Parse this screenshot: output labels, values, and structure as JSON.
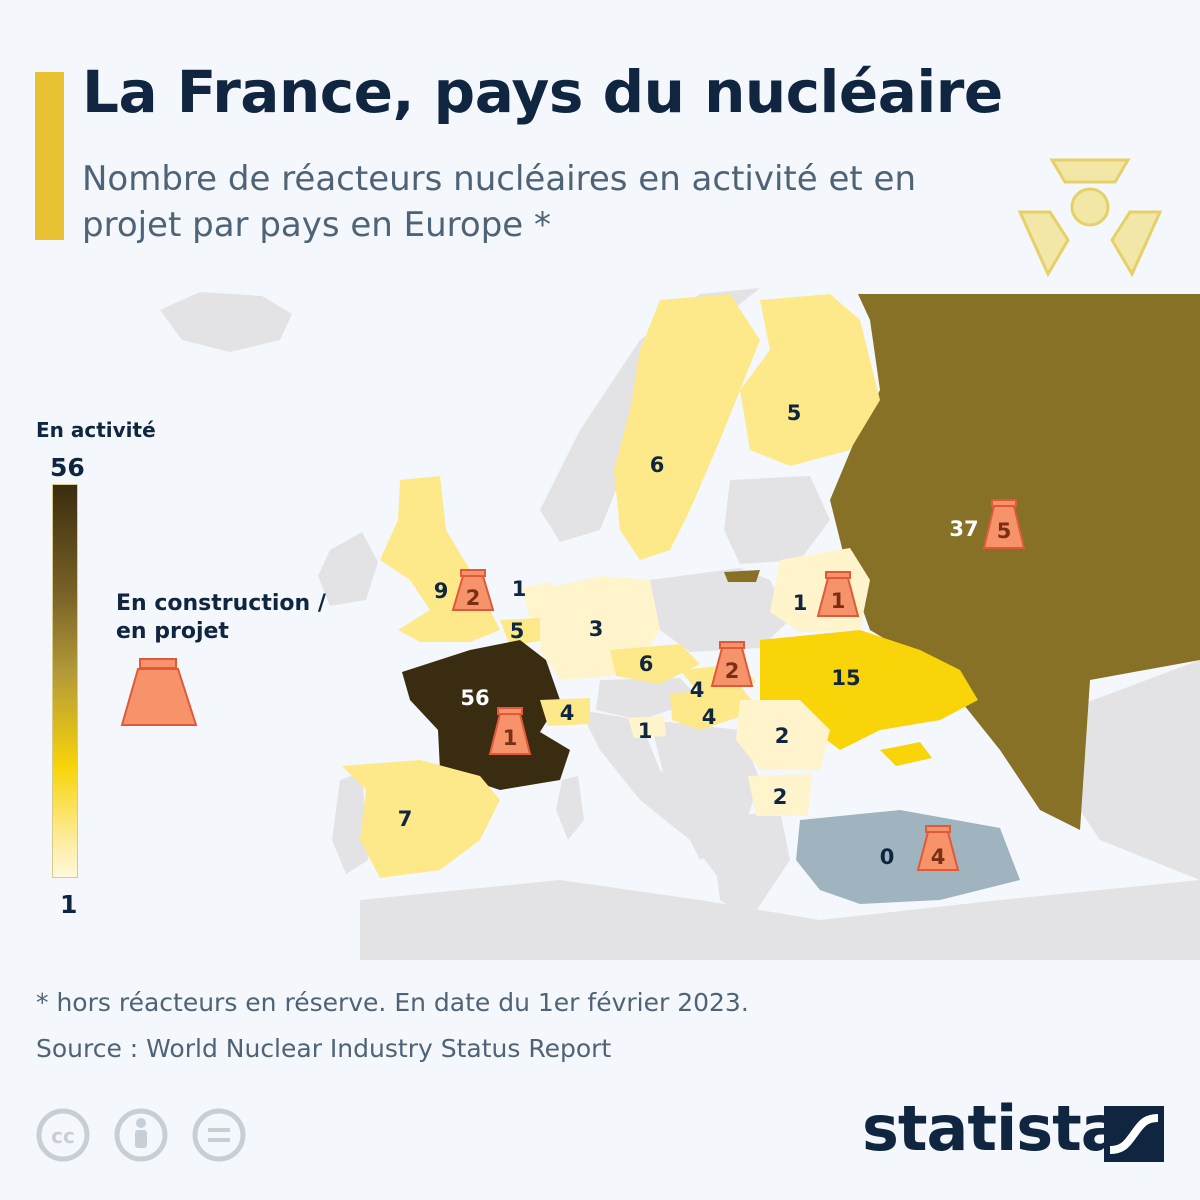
{
  "header": {
    "title": "La France, pays du nucléaire",
    "subtitle": "Nombre de réacteurs nucléaires en activité et en projet par pays en Europe *"
  },
  "legend": {
    "active_title": "En activité",
    "scale_max": "56",
    "scale_min": "1",
    "construction_label": "En construction / en projet",
    "construction_icon": "reactor-construction-icon",
    "colors": {
      "high": "#3a2c10",
      "mid": "#b39a38",
      "low": "#f8d409",
      "lowest": "#fff8dc",
      "zero": "#9fb4bf",
      "construction": "#f7936a"
    }
  },
  "map": {
    "countries": [
      {
        "name": "Russie",
        "active": "37",
        "construction": "5"
      },
      {
        "name": "Finlande",
        "active": "5"
      },
      {
        "name": "Suède",
        "active": "6"
      },
      {
        "name": "Royaume-Uni",
        "active": "9",
        "construction": "2"
      },
      {
        "name": "Pays-Bas",
        "active": "1"
      },
      {
        "name": "Belgique",
        "active": "5"
      },
      {
        "name": "Allemagne",
        "active": "3"
      },
      {
        "name": "France",
        "active": "56",
        "construction": "1"
      },
      {
        "name": "Suisse",
        "active": "4"
      },
      {
        "name": "Tchéquie",
        "active": "6"
      },
      {
        "name": "Slovaquie",
        "active": "4",
        "construction": "2"
      },
      {
        "name": "Hongrie",
        "active": "4"
      },
      {
        "name": "Slovénie",
        "active": "1"
      },
      {
        "name": "Biélorussie",
        "active": "1",
        "construction": "1"
      },
      {
        "name": "Ukraine",
        "active": "15"
      },
      {
        "name": "Roumanie",
        "active": "2"
      },
      {
        "name": "Bulgarie",
        "active": "2"
      },
      {
        "name": "Espagne",
        "active": "7"
      },
      {
        "name": "Turquie",
        "active": "0",
        "construction": "4"
      }
    ]
  },
  "footer": {
    "footnote": "* hors réacteurs en réserve. En date du 1er février 2023.",
    "source": "Source : World Nuclear Industry Status Report",
    "brand": "statista",
    "license_icons": [
      "cc-icon",
      "attribution-icon",
      "no-derivatives-icon"
    ]
  }
}
